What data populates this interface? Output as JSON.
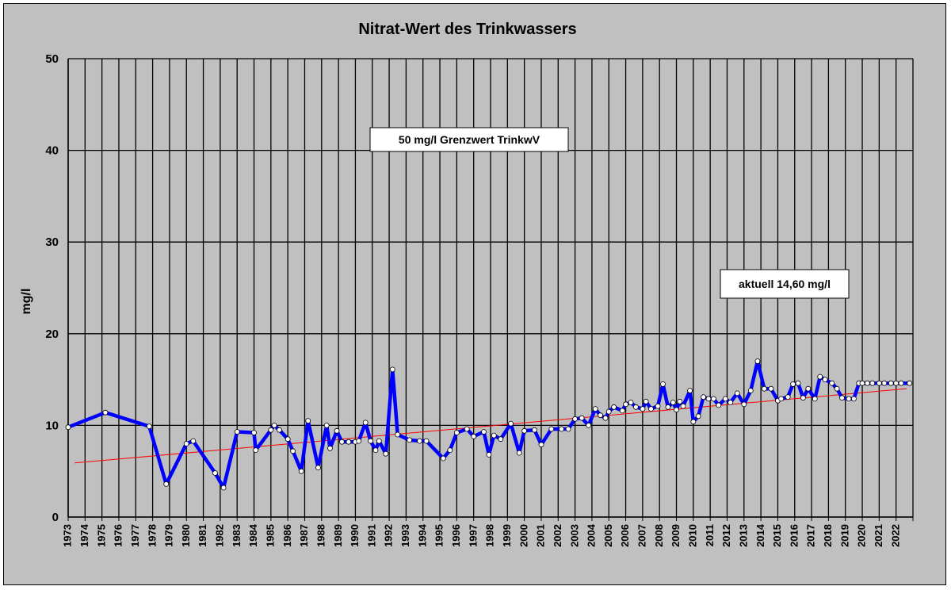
{
  "chart_data": {
    "type": "line",
    "title": "Nitrat-Wert des Trinkwassers",
    "ylabel": "mg/l",
    "xlabel": "",
    "ylim": [
      0,
      50
    ],
    "yticks": [
      0,
      10,
      20,
      30,
      40,
      50
    ],
    "xlim": [
      1973,
      2023
    ],
    "x_tick_labels": [
      "1973",
      "1974",
      "1975",
      "1976",
      "1977",
      "1978",
      "1979",
      "1980",
      "1981",
      "1982",
      "1983",
      "1984",
      "1985",
      "1986",
      "1987",
      "1988",
      "1989",
      "1990",
      "1991",
      "1992",
      "1993",
      "1994",
      "1995",
      "1996",
      "1997",
      "1998",
      "1999",
      "2000",
      "2001",
      "2002",
      "2003",
      "2004",
      "2005",
      "2006",
      "2007",
      "2008",
      "2009",
      "2010",
      "2011",
      "2012",
      "2013",
      "2014",
      "2015",
      "2016",
      "2017",
      "2018",
      "2019",
      "2020",
      "2021",
      "2022"
    ],
    "grid": true,
    "colors": {
      "background": "#c0c0c0",
      "series": "#0000ff",
      "trend": "#ff0000",
      "markers": "#ffffff"
    },
    "series": [
      {
        "x": [
          1973.0,
          1975.2,
          1977.8,
          1978.8,
          1980.0,
          1980.4,
          1981.7,
          1982.2,
          1983.0,
          1984.0,
          1984.1,
          1985.0,
          1985.2,
          1985.5,
          1986.0,
          1986.3,
          1986.8,
          1987.2,
          1987.8,
          1988.3,
          1988.5,
          1988.9,
          1989.2,
          1989.6,
          1990.0,
          1990.2,
          1990.6,
          1990.9,
          1991.2,
          1991.4,
          1991.8,
          1992.2,
          1992.5,
          1993.2,
          1993.8,
          1994.2,
          1995.2,
          1995.6,
          1996.0,
          1996.6,
          1997.0,
          1997.6,
          1997.9,
          1998.2,
          1998.6,
          1999.2,
          1999.7,
          2000.0,
          2000.6,
          2001.0,
          2001.6,
          2002.2,
          2002.6,
          2003.0,
          2003.4,
          2003.8,
          2004.2,
          2004.5,
          2004.8,
          2005.0,
          2005.3,
          2005.8,
          2006.0,
          2006.3,
          2006.6,
          2007.0,
          2007.2,
          2007.5,
          2007.9,
          2008.2,
          2008.5,
          2008.8,
          2009.0,
          2009.2,
          2009.4,
          2009.8,
          2010.0,
          2010.3,
          2010.6,
          2010.9,
          2011.2,
          2011.5,
          2011.9,
          2012.2,
          2012.6,
          2013.0,
          2013.4,
          2013.8,
          2014.2,
          2014.6,
          2015.0,
          2015.2,
          2015.6,
          2015.9,
          2016.2,
          2016.5,
          2016.8,
          2017.2,
          2017.5,
          2017.8,
          2018.2,
          2018.5,
          2018.8,
          2019.2,
          2019.5,
          2019.8,
          2020.0,
          2020.3,
          2020.6,
          2021.0,
          2021.3,
          2021.7,
          2022.0,
          2022.3,
          2022.8
        ],
        "y": [
          9.8,
          11.4,
          9.9,
          3.6,
          8.0,
          8.3,
          4.8,
          3.2,
          9.3,
          9.2,
          7.3,
          9.5,
          10.0,
          9.5,
          8.5,
          7.2,
          5.0,
          10.5,
          5.4,
          10.0,
          7.5,
          9.4,
          8.2,
          8.2,
          8.2,
          8.3,
          10.3,
          8.3,
          7.3,
          8.3,
          6.9,
          16.1,
          9.0,
          8.4,
          8.3,
          8.3,
          6.4,
          7.3,
          9.2,
          9.6,
          8.8,
          9.3,
          6.8,
          8.9,
          8.5,
          10.2,
          7.0,
          9.4,
          9.5,
          7.9,
          9.6,
          9.6,
          9.6,
          10.7,
          10.8,
          10.0,
          11.8,
          11.1,
          10.8,
          11.5,
          12.0,
          11.6,
          12.3,
          12.5,
          12.0,
          11.8,
          12.6,
          11.8,
          12.1,
          14.5,
          12.0,
          12.5,
          11.7,
          12.6,
          12.1,
          13.8,
          10.4,
          11.0,
          13.1,
          12.9,
          12.9,
          12.2,
          12.9,
          12.5,
          13.5,
          12.3,
          13.8,
          17.0,
          14.0,
          14.0,
          12.7,
          12.9,
          13.1,
          14.5,
          14.6,
          13.0,
          14.0,
          12.9,
          15.3,
          15.0,
          14.6,
          14.0,
          13.0,
          12.9,
          12.9,
          14.6,
          14.6,
          14.6,
          14.6,
          14.6,
          14.6,
          14.6,
          14.6,
          14.6,
          14.6
        ]
      }
    ],
    "trendline": {
      "x": [
        1973,
        2023
      ],
      "y": [
        5.9,
        14.0
      ]
    },
    "annotations": [
      {
        "text": "50 mg/l  Grenzwert TrinkwV"
      },
      {
        "text": "aktuell 14,60 mg/l"
      }
    ]
  }
}
